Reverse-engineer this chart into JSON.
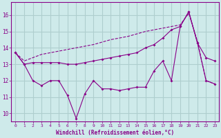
{
  "xlabel": "Windchill (Refroidissement éolien,°C)",
  "background_color": "#ceeaea",
  "grid_color": "#aecece",
  "line_color": "#880088",
  "xlim": [
    -0.5,
    23.5
  ],
  "ylim": [
    9.5,
    16.8
  ],
  "yticks": [
    10,
    11,
    12,
    13,
    14,
    15,
    16
  ],
  "xticks": [
    0,
    1,
    2,
    3,
    4,
    5,
    6,
    7,
    8,
    9,
    10,
    11,
    12,
    13,
    14,
    15,
    16,
    17,
    18,
    19,
    20,
    21,
    22,
    23
  ],
  "line1_x": [
    0,
    1,
    2,
    3,
    4,
    5,
    6,
    7,
    8,
    9,
    10,
    11,
    12,
    13,
    14,
    15,
    16,
    17,
    18,
    19,
    20,
    21,
    22,
    23
  ],
  "line1_y": [
    13.7,
    13.0,
    13.1,
    13.1,
    13.1,
    13.1,
    13.0,
    13.0,
    13.1,
    13.2,
    13.3,
    13.4,
    13.5,
    13.6,
    13.7,
    14.0,
    14.2,
    14.6,
    15.1,
    15.3,
    16.2,
    14.3,
    13.4,
    13.2
  ],
  "line2_x": [
    0,
    1,
    2,
    3,
    4,
    5,
    6,
    7,
    8,
    9,
    10,
    11,
    12,
    13,
    14,
    15,
    16,
    17,
    18,
    19,
    20,
    21,
    22,
    23
  ],
  "line2_y": [
    13.7,
    13.2,
    13.4,
    13.6,
    13.7,
    13.8,
    13.9,
    14.0,
    14.1,
    14.2,
    14.35,
    14.5,
    14.6,
    14.7,
    14.85,
    15.0,
    15.1,
    15.2,
    15.3,
    15.4,
    16.1,
    14.4,
    12.0,
    11.8
  ],
  "line3_x": [
    0,
    1,
    2,
    3,
    4,
    5,
    6,
    7,
    8,
    9,
    10,
    11,
    12,
    13,
    14,
    15,
    16,
    17,
    18,
    19,
    20,
    21,
    22,
    23
  ],
  "line3_y": [
    13.7,
    13.0,
    12.0,
    11.7,
    12.0,
    12.0,
    11.1,
    9.7,
    11.2,
    12.0,
    11.5,
    11.5,
    11.4,
    11.5,
    11.6,
    11.6,
    12.6,
    13.2,
    12.0,
    15.3,
    16.2,
    14.3,
    12.0,
    11.8
  ]
}
